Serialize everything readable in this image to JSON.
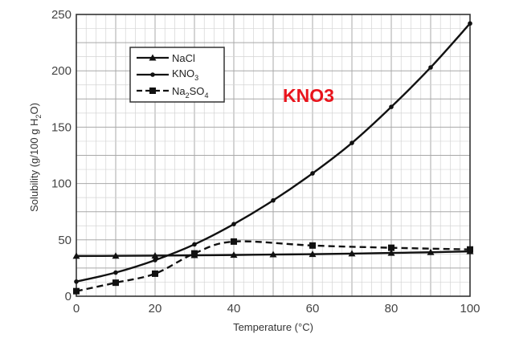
{
  "chart_data": {
    "type": "line",
    "title": "",
    "xlabel": "Temperature (°C)",
    "ylabel": "Solubility (g/100 g H₂O)",
    "xlim": [
      0,
      100
    ],
    "ylim": [
      0,
      250
    ],
    "x_ticks": [
      0,
      20,
      40,
      60,
      80,
      100
    ],
    "y_ticks": [
      0,
      50,
      100,
      150,
      200,
      250
    ],
    "grid": true,
    "legend_position": "top-left",
    "annotation": {
      "text": "KNO3",
      "color": "#e8141c"
    },
    "series": [
      {
        "name": "NaCl",
        "marker": "triangle",
        "line_style": "solid",
        "x": [
          0,
          10,
          20,
          30,
          40,
          50,
          60,
          70,
          80,
          90,
          100
        ],
        "y": [
          35.7,
          35.8,
          36.0,
          36.3,
          36.6,
          37.0,
          37.3,
          37.8,
          38.4,
          39.0,
          39.8
        ]
      },
      {
        "name": "KNO3",
        "marker": "dot",
        "line_style": "solid",
        "x": [
          0,
          10,
          20,
          30,
          40,
          50,
          60,
          70,
          80,
          90,
          100
        ],
        "y": [
          13,
          21,
          32,
          46,
          64,
          85,
          109,
          136,
          168,
          203,
          242
        ]
      },
      {
        "name": "Na2SO4",
        "marker": "square",
        "line_style": "dashed",
        "x": [
          0,
          10,
          20,
          30,
          40,
          60,
          80,
          100
        ],
        "y": [
          4.5,
          12,
          20,
          38,
          48.5,
          45,
          43,
          41.5
        ]
      }
    ]
  },
  "legend_labels": [
    {
      "base": "NaCl",
      "sub": "",
      "post": ""
    },
    {
      "base": "KNO",
      "sub": "3",
      "post": ""
    },
    {
      "base": "Na",
      "sub": "2",
      "post": "SO",
      "sub2": "4"
    }
  ],
  "axis_titles": {
    "x_main": "Temperature (",
    "x_unit": "°C)",
    "y_main": "Solubility (g/100 g H",
    "y_sub": "2",
    "y_post": "O)"
  }
}
